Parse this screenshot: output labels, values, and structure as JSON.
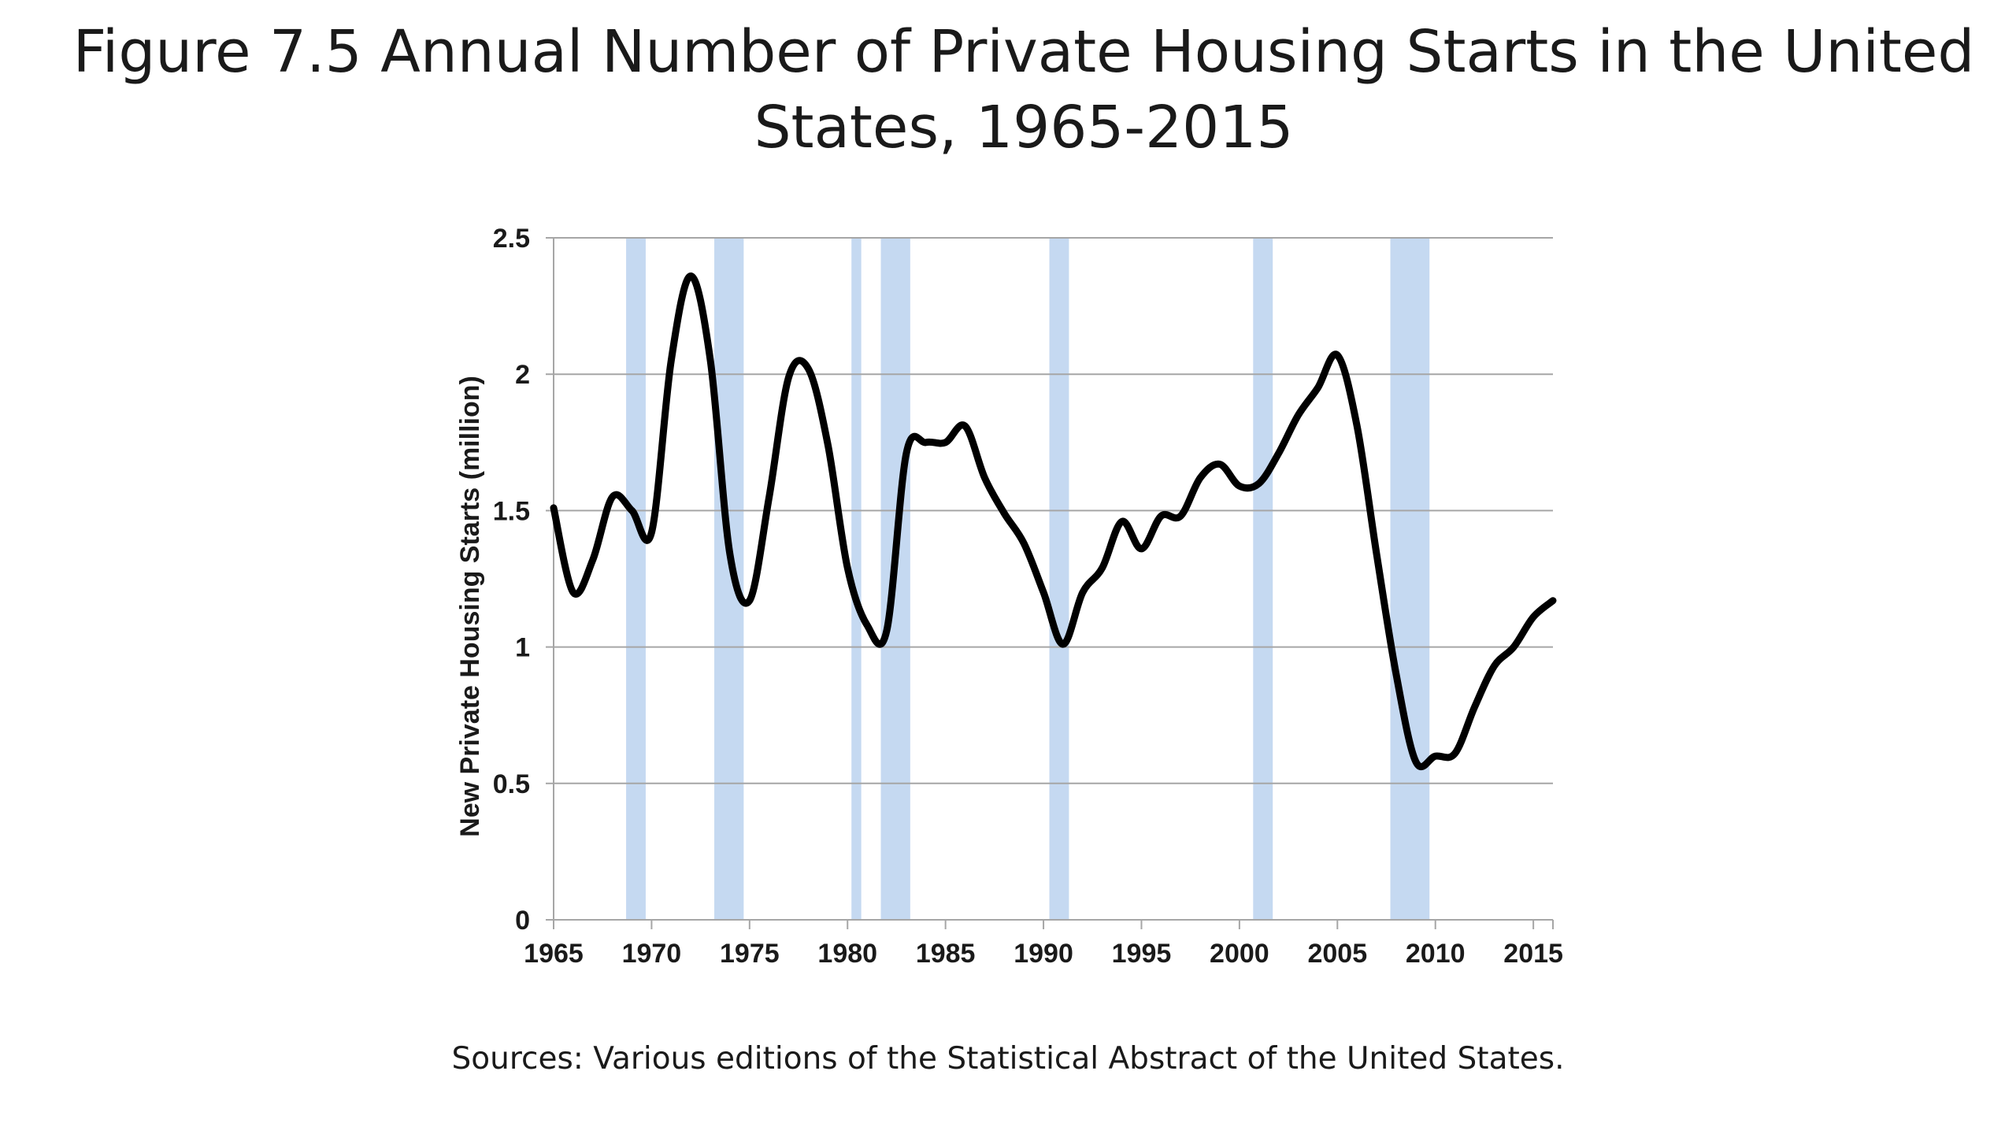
{
  "title": "Figure 7.5 Annual Number of Private Housing Starts in the United States, 1965-2015",
  "source": "Sources: Various editions of the Statistical Abstract of the United States.",
  "colors": {
    "line": "#000000",
    "recession_band": "#c5d9f1",
    "gridline": "#a6a6a6",
    "axis": "#a6a6a6"
  },
  "chart_data": {
    "type": "line",
    "title": "",
    "xlabel": "",
    "ylabel": "New Private Housing Starts (million)",
    "xlim": [
      1965,
      2016
    ],
    "ylim": [
      0,
      2.5
    ],
    "grid": true,
    "x_ticks": [
      1965,
      1970,
      1975,
      1980,
      1985,
      1990,
      1995,
      2000,
      2005,
      2010,
      2015
    ],
    "y_ticks": [
      0,
      0.5,
      1,
      1.5,
      2,
      2.5
    ],
    "y_tick_labels": [
      "0",
      "0.5",
      "1",
      "1.5",
      "2",
      "2.5"
    ],
    "series": [
      {
        "x": [
          1965,
          1966,
          1967,
          1968,
          1969,
          1970,
          1971,
          1972,
          1973,
          1974,
          1975,
          1976,
          1977,
          1978,
          1979,
          1980,
          1981,
          1982,
          1983,
          1984,
          1985,
          1986,
          1987,
          1988,
          1989,
          1990,
          1991,
          1992,
          1993,
          1994,
          1995,
          1996,
          1997,
          1998,
          1999,
          2000,
          2001,
          2002,
          2003,
          2004,
          2005,
          2006,
          2007,
          2008,
          2009,
          2010,
          2011,
          2012,
          2013,
          2014,
          2015,
          2016
        ],
        "values": [
          1.51,
          1.2,
          1.32,
          1.55,
          1.5,
          1.42,
          2.05,
          2.36,
          2.05,
          1.34,
          1.17,
          1.55,
          1.99,
          2.02,
          1.74,
          1.29,
          1.08,
          1.06,
          1.71,
          1.75,
          1.75,
          1.81,
          1.62,
          1.49,
          1.38,
          1.2,
          1.01,
          1.2,
          1.29,
          1.46,
          1.36,
          1.48,
          1.48,
          1.62,
          1.67,
          1.59,
          1.6,
          1.71,
          1.85,
          1.95,
          2.07,
          1.81,
          1.34,
          0.9,
          0.58,
          0.6,
          0.61,
          0.78,
          0.93,
          1.0,
          1.11,
          1.17
        ]
      }
    ],
    "shaded_periods": [
      {
        "start": 1968.7,
        "end": 1969.7
      },
      {
        "start": 1973.2,
        "end": 1974.7
      },
      {
        "start": 1980.2,
        "end": 1980.7
      },
      {
        "start": 1981.7,
        "end": 1983.2
      },
      {
        "start": 1990.3,
        "end": 1991.3
      },
      {
        "start": 2000.7,
        "end": 2001.7
      },
      {
        "start": 2007.7,
        "end": 2009.7
      }
    ]
  }
}
